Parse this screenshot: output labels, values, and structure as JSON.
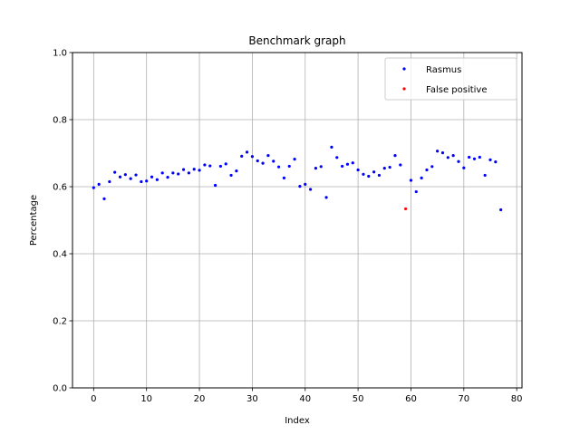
{
  "chart_data": {
    "type": "scatter",
    "title": "Benchmark graph",
    "xlabel": "Index",
    "ylabel": "Percentage",
    "xlim": [
      -4,
      81
    ],
    "ylim": [
      0,
      1.0
    ],
    "xticks": [
      0,
      10,
      20,
      30,
      40,
      50,
      60,
      70,
      80
    ],
    "yticks": [
      0.0,
      0.2,
      0.4,
      0.6,
      0.8,
      1.0
    ],
    "xtick_labels": [
      "0",
      "10",
      "20",
      "30",
      "40",
      "50",
      "60",
      "70",
      "80"
    ],
    "ytick_labels": [
      "0.0",
      "0.2",
      "0.4",
      "0.6",
      "0.8",
      "1.0"
    ],
    "grid": true,
    "legend_position": "top-right",
    "series": [
      {
        "name": "Rasmus",
        "color": "#0000ff",
        "points": [
          [
            0,
            0.597
          ],
          [
            1,
            0.607
          ],
          [
            2,
            0.564
          ],
          [
            3,
            0.615
          ],
          [
            4,
            0.643
          ],
          [
            5,
            0.629
          ],
          [
            6,
            0.636
          ],
          [
            7,
            0.624
          ],
          [
            8,
            0.635
          ],
          [
            9,
            0.615
          ],
          [
            10,
            0.617
          ],
          [
            11,
            0.629
          ],
          [
            12,
            0.621
          ],
          [
            13,
            0.641
          ],
          [
            14,
            0.628
          ],
          [
            15,
            0.641
          ],
          [
            16,
            0.638
          ],
          [
            17,
            0.651
          ],
          [
            18,
            0.641
          ],
          [
            19,
            0.652
          ],
          [
            20,
            0.649
          ],
          [
            21,
            0.665
          ],
          [
            22,
            0.662
          ],
          [
            23,
            0.604
          ],
          [
            24,
            0.661
          ],
          [
            25,
            0.668
          ],
          [
            26,
            0.634
          ],
          [
            27,
            0.647
          ],
          [
            28,
            0.691
          ],
          [
            29,
            0.703
          ],
          [
            30,
            0.69
          ],
          [
            31,
            0.677
          ],
          [
            32,
            0.67
          ],
          [
            33,
            0.693
          ],
          [
            34,
            0.676
          ],
          [
            35,
            0.659
          ],
          [
            36,
            0.626
          ],
          [
            37,
            0.661
          ],
          [
            38,
            0.682
          ],
          [
            39,
            0.601
          ],
          [
            40,
            0.607
          ],
          [
            41,
            0.592
          ],
          [
            42,
            0.655
          ],
          [
            43,
            0.66
          ],
          [
            44,
            0.568
          ],
          [
            45,
            0.718
          ],
          [
            46,
            0.687
          ],
          [
            47,
            0.661
          ],
          [
            48,
            0.667
          ],
          [
            49,
            0.671
          ],
          [
            50,
            0.65
          ],
          [
            51,
            0.637
          ],
          [
            52,
            0.631
          ],
          [
            53,
            0.644
          ],
          [
            54,
            0.634
          ],
          [
            55,
            0.655
          ],
          [
            56,
            0.658
          ],
          [
            57,
            0.693
          ],
          [
            58,
            0.665
          ],
          [
            60,
            0.619
          ],
          [
            61,
            0.585
          ],
          [
            62,
            0.626
          ],
          [
            63,
            0.65
          ],
          [
            64,
            0.66
          ],
          [
            65,
            0.706
          ],
          [
            66,
            0.701
          ],
          [
            67,
            0.687
          ],
          [
            68,
            0.693
          ],
          [
            69,
            0.675
          ],
          [
            70,
            0.656
          ],
          [
            71,
            0.688
          ],
          [
            72,
            0.683
          ],
          [
            73,
            0.688
          ],
          [
            74,
            0.634
          ],
          [
            75,
            0.68
          ],
          [
            76,
            0.674
          ],
          [
            77,
            0.531
          ]
        ]
      },
      {
        "name": "False positive",
        "color": "#ff0000",
        "points": [
          [
            59,
            0.534
          ]
        ]
      }
    ]
  }
}
